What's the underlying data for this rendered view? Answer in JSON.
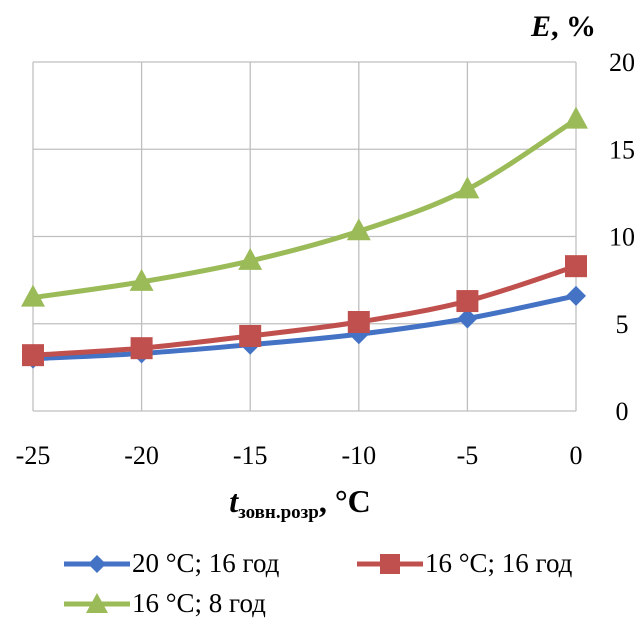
{
  "chart_data": {
    "type": "line",
    "x": [
      -25,
      -20,
      -15,
      -10,
      -5,
      0
    ],
    "xlabel": "t",
    "xlabel_sub": "зовн.розр",
    "xlabel_unit": ", °C",
    "ylabel": "E",
    "ylabel_unit": ", %",
    "xlim": [
      -25,
      0
    ],
    "ylim": [
      0,
      20
    ],
    "xticks": [
      -25,
      -20,
      -15,
      -10,
      -5,
      0
    ],
    "yticks": [
      0,
      5,
      10,
      15,
      20
    ],
    "grid": true,
    "legend_position": "bottom",
    "series": [
      {
        "name": "20 °C; 16 год",
        "values": [
          3.0,
          3.3,
          3.8,
          4.4,
          5.3,
          6.6
        ],
        "color": "#4472c4",
        "marker": "diamond"
      },
      {
        "name": "16 °C; 16 год",
        "values": [
          3.2,
          3.6,
          4.3,
          5.1,
          6.3,
          8.3
        ],
        "color": "#c0504d",
        "marker": "square"
      },
      {
        "name": "16 °C; 8 год",
        "values": [
          6.5,
          7.4,
          8.6,
          10.3,
          12.7,
          16.7
        ],
        "color": "#9bbb59",
        "marker": "triangle"
      }
    ]
  }
}
